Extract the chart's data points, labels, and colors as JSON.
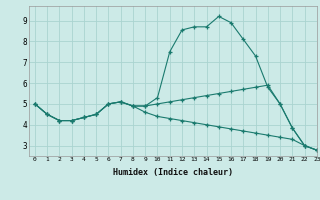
{
  "xlabel": "Humidex (Indice chaleur)",
  "bg_color": "#cceae7",
  "grid_color": "#aad4d0",
  "line_color": "#1a7a6e",
  "xlim": [
    -0.5,
    23
  ],
  "ylim": [
    2.5,
    9.7
  ],
  "xticks": [
    0,
    1,
    2,
    3,
    4,
    5,
    6,
    7,
    8,
    9,
    10,
    11,
    12,
    13,
    14,
    15,
    16,
    17,
    18,
    19,
    20,
    21,
    22,
    23
  ],
  "yticks": [
    3,
    4,
    5,
    6,
    7,
    8,
    9
  ],
  "line1_x": [
    0,
    1,
    2,
    3,
    4,
    5,
    6,
    7,
    8,
    9,
    10,
    11,
    12,
    13,
    14,
    15,
    16,
    17,
    18,
    19,
    20,
    21,
    22,
    23
  ],
  "line1_y": [
    5.0,
    4.5,
    4.2,
    4.2,
    4.35,
    4.5,
    5.0,
    5.1,
    4.9,
    4.9,
    5.3,
    7.5,
    8.55,
    8.7,
    8.7,
    9.2,
    8.9,
    8.1,
    7.3,
    5.8,
    5.0,
    3.85,
    3.0,
    2.78
  ],
  "line2_x": [
    0,
    1,
    2,
    3,
    4,
    5,
    6,
    7,
    8,
    9,
    10,
    11,
    12,
    13,
    14,
    15,
    16,
    17,
    18,
    19,
    20,
    21,
    22,
    23
  ],
  "line2_y": [
    5.0,
    4.5,
    4.2,
    4.2,
    4.35,
    4.5,
    5.0,
    5.1,
    4.9,
    4.9,
    5.0,
    5.1,
    5.2,
    5.3,
    5.4,
    5.5,
    5.6,
    5.7,
    5.8,
    5.9,
    5.0,
    3.85,
    3.0,
    2.78
  ],
  "line3_x": [
    0,
    1,
    2,
    3,
    4,
    5,
    6,
    7,
    8,
    9,
    10,
    11,
    12,
    13,
    14,
    15,
    16,
    17,
    18,
    19,
    20,
    21,
    22,
    23
  ],
  "line3_y": [
    5.0,
    4.5,
    4.2,
    4.2,
    4.35,
    4.5,
    5.0,
    5.1,
    4.9,
    4.6,
    4.4,
    4.3,
    4.2,
    4.1,
    4.0,
    3.9,
    3.8,
    3.7,
    3.6,
    3.5,
    3.4,
    3.3,
    3.0,
    2.78
  ]
}
